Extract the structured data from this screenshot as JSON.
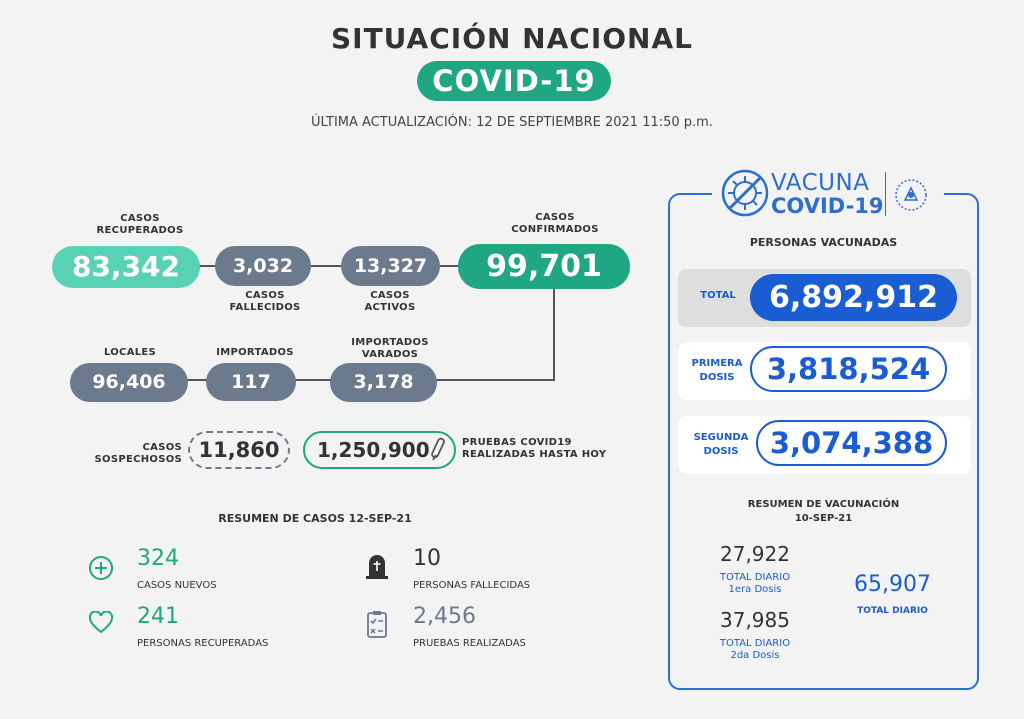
{
  "header": {
    "title": "SITUACIÓN NACIONAL",
    "badge": "COVID-19",
    "updated": "ÚLTIMA ACTUALIZACIÓN: 12 DE SEPTIEMBRE 2021 11:50 p.m."
  },
  "cases": {
    "recovered": {
      "label": "CASOS\nRECUPERADOS",
      "value": "83,342"
    },
    "deceased": {
      "label": "CASOS\nFALLECIDOS",
      "value": "3,032"
    },
    "active": {
      "label": "CASOS\nACTIVOS",
      "value": "13,327"
    },
    "confirmed": {
      "label": "CASOS\nCONFIRMADOS",
      "value": "99,701"
    },
    "local": {
      "label": "LOCALES",
      "value": "96,406"
    },
    "imported": {
      "label": "IMPORTADOS",
      "value": "117"
    },
    "stranded": {
      "label": "IMPORTADOS\nVARADOS",
      "value": "3,178"
    },
    "suspected": {
      "label": "CASOS\nSOSPECHOSOS",
      "value": "11,860"
    },
    "tests": {
      "label": "PRUEBAS COVID19\nREALIZADAS HASTA HOY",
      "value": "1,250,900"
    }
  },
  "summary": {
    "title": "RESUMEN DE CASOS 12-SEP-21",
    "new_cases": {
      "value": "324",
      "label": "CASOS NUEVOS",
      "icon": "plus-circle-icon"
    },
    "deaths": {
      "value": "10",
      "label": "PERSONAS FALLECIDAS",
      "icon": "tombstone-icon"
    },
    "recovered": {
      "value": "241",
      "label": "PERSONAS RECUPERADAS",
      "icon": "heart-icon"
    },
    "tests": {
      "value": "2,456",
      "label": "PRUEBAS REALIZADAS",
      "icon": "clipboard-icon"
    }
  },
  "vaccine": {
    "logo_top": "VACUNA",
    "logo_bottom": "COVID-19",
    "heading": "PERSONAS VACUNADAS",
    "total": {
      "label": "TOTAL",
      "value": "6,892,912"
    },
    "first": {
      "label": "PRIMERA\nDOSIS",
      "value": "3,818,524"
    },
    "second": {
      "label": "SEGUNDA\nDOSIS",
      "value": "3,074,388"
    },
    "summary_title": "RESUMEN DE VACUNACIÓN\n10-SEP-21",
    "daily_first": {
      "value": "27,922",
      "label": "TOTAL DIARIO\n1era Dosis"
    },
    "daily_second": {
      "value": "37,985",
      "label": "TOTAL DIARIO\n2da Dosis"
    },
    "daily_total": {
      "value": "65,907",
      "label": "TOTAL DIARIO"
    }
  },
  "colors": {
    "teal": "#1fa682",
    "mint": "#58d1b4",
    "slate": "#6b7a8d",
    "blue": "#1a5cd1"
  }
}
